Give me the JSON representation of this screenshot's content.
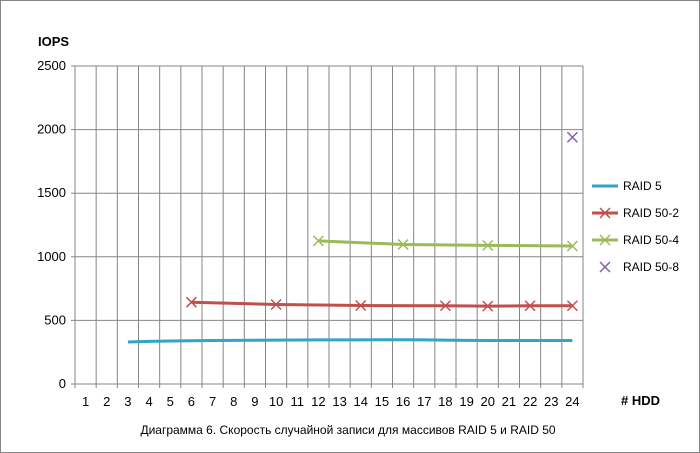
{
  "chart_data": {
    "type": "line",
    "title": "",
    "caption": "Диаграмма 6. Скорость случайной записи для массивов RAID 5 и RAID 50",
    "ylabel": "IOPS",
    "xlabel": "# HDD",
    "ylim": [
      0,
      2500
    ],
    "yticks": [
      0,
      500,
      1000,
      1500,
      2000,
      2500
    ],
    "xticks": [
      1,
      2,
      3,
      4,
      5,
      6,
      7,
      8,
      9,
      10,
      11,
      12,
      13,
      14,
      15,
      16,
      17,
      18,
      19,
      20,
      21,
      22,
      23,
      24
    ],
    "grid": true,
    "legend_position": "right",
    "series": [
      {
        "name": "RAID 5",
        "color": "#31a5c6",
        "marker": "none",
        "x": [
          3,
          4,
          5,
          6,
          7,
          8,
          9,
          10,
          11,
          12,
          13,
          14,
          15,
          16,
          17,
          18,
          19,
          20,
          21,
          22,
          23,
          24
        ],
        "values": [
          330,
          335,
          338,
          340,
          342,
          343,
          344,
          345,
          346,
          347,
          347,
          347,
          348,
          348,
          347,
          345,
          343,
          342,
          342,
          342,
          342,
          342
        ]
      },
      {
        "name": "RAID 50-2",
        "color": "#c0504d",
        "marker": "x",
        "x": [
          6,
          10,
          14,
          18,
          20,
          22,
          24
        ],
        "values": [
          643,
          625,
          617,
          615,
          612,
          615,
          615
        ]
      },
      {
        "name": "RAID 50-4",
        "color": "#9bbb59",
        "marker": "x",
        "x": [
          12,
          16,
          20,
          24
        ],
        "values": [
          1125,
          1097,
          1090,
          1085
        ]
      },
      {
        "name": "RAID 50-8",
        "color": "#8064a2",
        "marker": "x",
        "line": false,
        "x": [
          24
        ],
        "values": [
          1940
        ]
      }
    ]
  }
}
